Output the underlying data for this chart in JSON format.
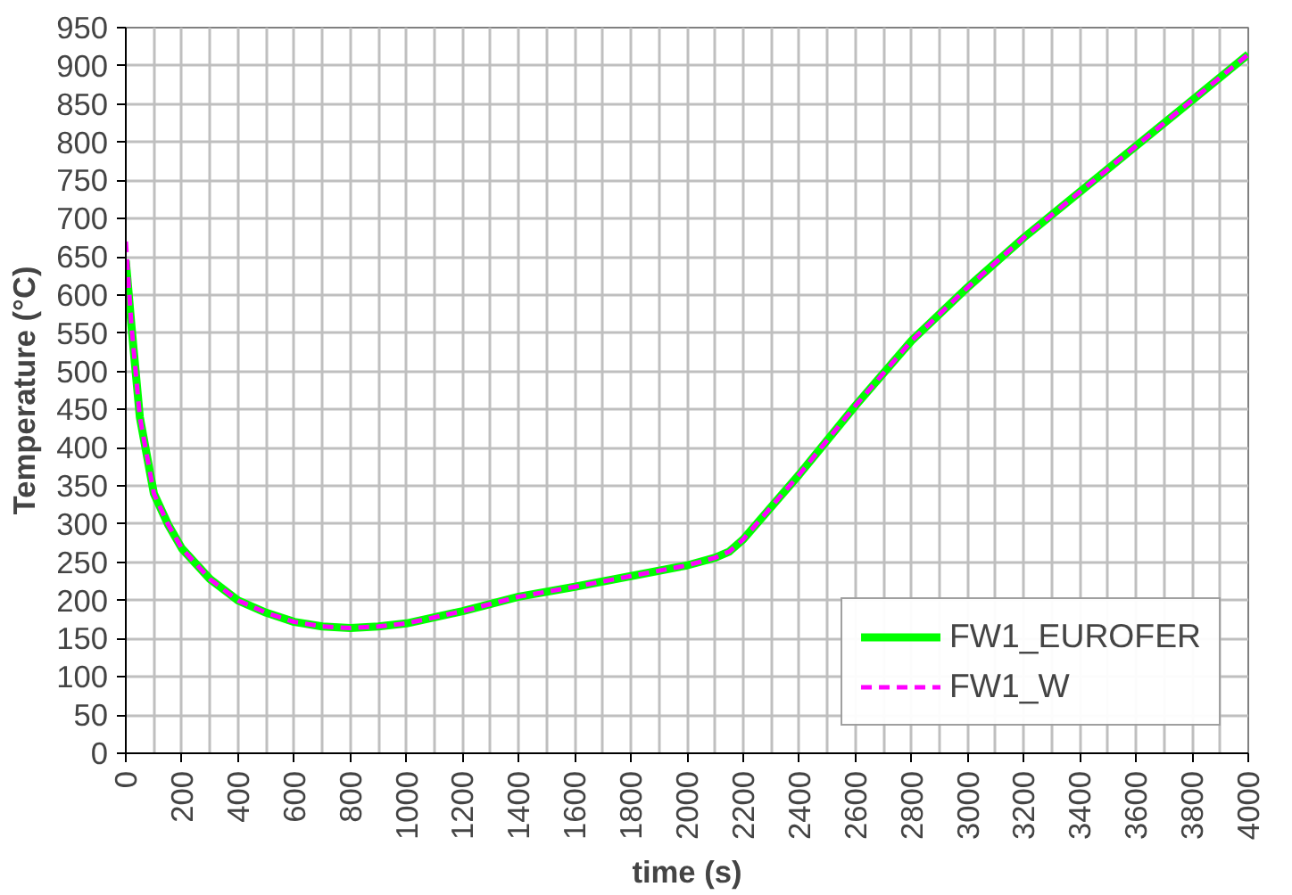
{
  "chart_data": {
    "type": "line",
    "xlabel": "time (s)",
    "ylabel": "Temperature (°C)",
    "xlim": [
      0,
      4000
    ],
    "ylim": [
      0,
      950
    ],
    "xticks": [
      0,
      200,
      400,
      600,
      800,
      1000,
      1200,
      1400,
      1600,
      1800,
      2000,
      2200,
      2400,
      2600,
      2800,
      3000,
      3200,
      3400,
      3600,
      3800,
      4000
    ],
    "yticks": [
      0,
      50,
      100,
      150,
      200,
      250,
      300,
      350,
      400,
      450,
      500,
      550,
      600,
      650,
      700,
      750,
      800,
      850,
      900,
      950
    ],
    "grid": true,
    "legend": "bottom right",
    "x": [
      0,
      20,
      50,
      100,
      150,
      200,
      300,
      400,
      500,
      600,
      700,
      800,
      900,
      1000,
      1200,
      1400,
      1600,
      1800,
      2000,
      2100,
      2150,
      2200,
      2400,
      2600,
      2800,
      3000,
      3200,
      3400,
      3600,
      3800,
      4000
    ],
    "series": [
      {
        "name": "FW1_EUROFER",
        "color": "#00ff00",
        "line_style": "solid",
        "values": [
          645,
          560,
          440,
          340,
          300,
          268,
          228,
          200,
          184,
          172,
          166,
          164,
          166,
          170,
          186,
          205,
          218,
          232,
          246,
          256,
          264,
          280,
          365,
          455,
          540,
          610,
          675,
          735,
          795,
          855,
          915
        ]
      },
      {
        "name": "FW1_W",
        "color": "#ff00ff",
        "line_style": "dashed",
        "values": [
          670,
          560,
          440,
          340,
          300,
          268,
          228,
          200,
          184,
          172,
          166,
          164,
          166,
          170,
          186,
          205,
          218,
          232,
          246,
          256,
          264,
          280,
          365,
          455,
          540,
          610,
          675,
          735,
          795,
          855,
          915
        ]
      }
    ]
  }
}
